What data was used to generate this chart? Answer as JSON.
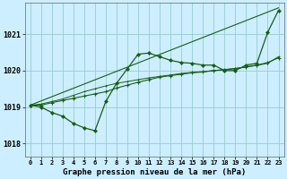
{
  "title": "Graphe pression niveau de la mer (hPa)",
  "background_color": "#cceeff",
  "grid_color": "#99cccc",
  "line_color": "#1a5c1a",
  "xlim": [
    -0.5,
    23.5
  ],
  "ylim": [
    1017.65,
    1021.85
  ],
  "yticks": [
    1018,
    1019,
    1020,
    1021
  ],
  "xticks": [
    0,
    1,
    2,
    3,
    4,
    5,
    6,
    7,
    8,
    9,
    10,
    11,
    12,
    13,
    14,
    15,
    16,
    17,
    18,
    19,
    20,
    21,
    22,
    23
  ],
  "series1_x": [
    0,
    1,
    2,
    3,
    4,
    5,
    6,
    7,
    8,
    9,
    10,
    11,
    12,
    13,
    14,
    15,
    16,
    17,
    18,
    19,
    20,
    21,
    22,
    23
  ],
  "series1_y": [
    1019.05,
    1019.0,
    1018.85,
    1018.75,
    1018.55,
    1018.43,
    1018.35,
    1019.15,
    1019.65,
    1020.05,
    1020.45,
    1020.48,
    1020.38,
    1020.28,
    1020.22,
    1020.2,
    1020.15,
    1020.15,
    1020.0,
    1020.0,
    1020.15,
    1020.2,
    1021.05,
    1021.65
  ],
  "series2_x": [
    0,
    1,
    2,
    3,
    4,
    5,
    6,
    7,
    8,
    9,
    10,
    11,
    12,
    13,
    14,
    15,
    16,
    17,
    18,
    19,
    20,
    21,
    22,
    23
  ],
  "series2_y": [
    1019.05,
    1019.05,
    1019.12,
    1019.18,
    1019.24,
    1019.3,
    1019.36,
    1019.42,
    1019.52,
    1019.6,
    1019.68,
    1019.75,
    1019.82,
    1019.86,
    1019.9,
    1019.94,
    1019.96,
    1020.0,
    1020.02,
    1020.05,
    1020.1,
    1020.15,
    1020.22,
    1020.35
  ],
  "series3_x": [
    0,
    1,
    2,
    3,
    4,
    5,
    6,
    7,
    8,
    9,
    10,
    11,
    12,
    13,
    14,
    15,
    16,
    17,
    18,
    19,
    20,
    21,
    22,
    23
  ],
  "series3_y": [
    1019.05,
    1019.08,
    1019.15,
    1019.22,
    1019.32,
    1019.42,
    1019.5,
    1019.58,
    1019.65,
    1019.7,
    1019.75,
    1019.8,
    1019.84,
    1019.88,
    1019.92,
    1019.95,
    1019.97,
    1020.0,
    1020.03,
    1020.06,
    1020.1,
    1020.14,
    1020.2,
    1020.38
  ],
  "series4_x": [
    0,
    23
  ],
  "series4_y": [
    1019.05,
    1021.72
  ]
}
